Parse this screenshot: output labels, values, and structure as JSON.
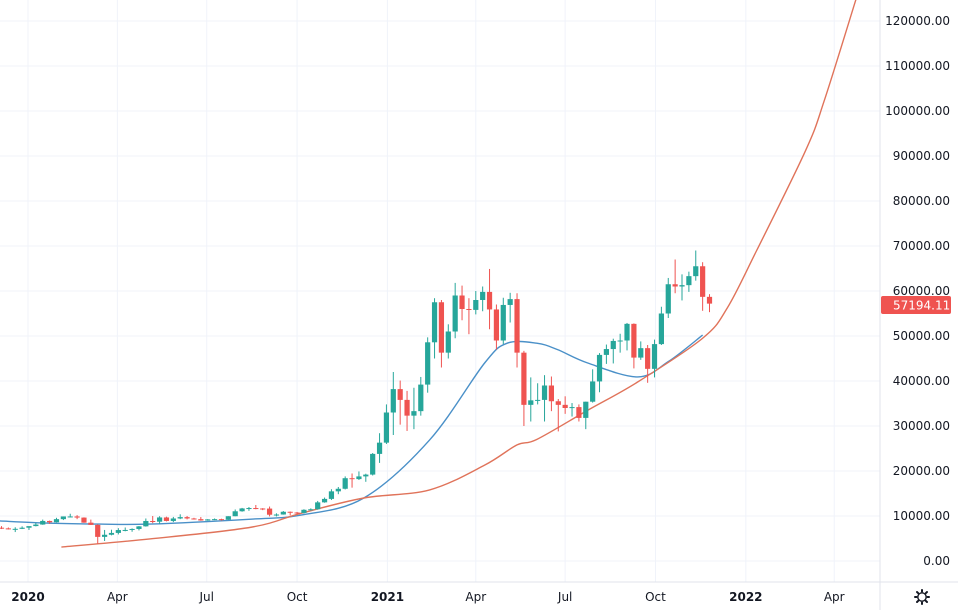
{
  "chart_data": {
    "type": "candlestick",
    "interval": "1W",
    "start": "2019-12-02",
    "ohlc_columns": [
      "open",
      "high",
      "low",
      "close"
    ],
    "candles": [
      [
        7400,
        7750,
        7100,
        7250
      ],
      [
        7250,
        7450,
        7000,
        7050
      ],
      [
        7050,
        7500,
        6430,
        7150
      ],
      [
        7150,
        7700,
        7100,
        7400
      ],
      [
        7400,
        7600,
        6900,
        7750
      ],
      [
        7760,
        8450,
        7700,
        8100
      ],
      [
        8100,
        9200,
        8050,
        8900
      ],
      [
        8900,
        8980,
        8250,
        8600
      ],
      [
        8600,
        9600,
        8550,
        9300
      ],
      [
        9300,
        9900,
        9100,
        9900
      ],
      [
        9900,
        10500,
        9700,
        9900
      ],
      [
        9900,
        10200,
        9300,
        9650
      ],
      [
        9650,
        9700,
        8500,
        8520
      ],
      [
        8520,
        9200,
        8000,
        8030
      ],
      [
        8030,
        8150,
        3850,
        5360
      ],
      [
        5360,
        6900,
        4450,
        5830
      ],
      [
        5830,
        6950,
        5700,
        6240
      ],
      [
        6240,
        7300,
        5900,
        6880
      ],
      [
        6880,
        7450,
        6600,
        6900
      ],
      [
        6900,
        7250,
        6500,
        7120
      ],
      [
        7120,
        7760,
        6800,
        7700
      ],
      [
        7700,
        9450,
        7640,
        8890
      ],
      [
        8890,
        10000,
        8400,
        8730
      ],
      [
        8730,
        9950,
        8250,
        9680
      ],
      [
        9680,
        9850,
        8800,
        8900
      ],
      [
        8900,
        9800,
        8650,
        9450
      ],
      [
        9450,
        10380,
        9300,
        9750
      ],
      [
        9750,
        10000,
        9250,
        9450
      ],
      [
        9450,
        9600,
        9200,
        9300
      ],
      [
        9300,
        9770,
        8950,
        9000
      ],
      [
        9000,
        9300,
        8950,
        9250
      ],
      [
        9250,
        9450,
        9100,
        9300
      ],
      [
        9300,
        9400,
        9000,
        9170
      ],
      [
        9170,
        9950,
        9150,
        9950
      ],
      [
        9950,
        11450,
        9950,
        11050
      ],
      [
        11050,
        11800,
        10950,
        11680
      ],
      [
        11680,
        12000,
        11150,
        11770
      ],
      [
        11770,
        12450,
        11500,
        11670
      ],
      [
        11670,
        11750,
        11300,
        11650
      ],
      [
        11650,
        12100,
        9900,
        10280
      ],
      [
        10280,
        10600,
        9900,
        10330
      ],
      [
        10330,
        11100,
        10300,
        10940
      ],
      [
        10940,
        11000,
        10150,
        10780
      ],
      [
        10780,
        10900,
        10400,
        10680
      ],
      [
        10680,
        11500,
        10550,
        11380
      ],
      [
        11380,
        11700,
        11200,
        11500
      ],
      [
        11500,
        13350,
        11400,
        13030
      ],
      [
        13030,
        14100,
        12950,
        13800
      ],
      [
        13800,
        15950,
        13550,
        15480
      ],
      [
        15480,
        16450,
        14850,
        16050
      ],
      [
        16050,
        18800,
        15900,
        18400
      ],
      [
        18400,
        19450,
        16300,
        18200
      ],
      [
        18200,
        19900,
        18000,
        18800
      ],
      [
        18800,
        19400,
        17600,
        19200
      ],
      [
        19200,
        24000,
        19000,
        23800
      ],
      [
        23800,
        28400,
        21800,
        26300
      ],
      [
        26300,
        34800,
        26000,
        33000
      ],
      [
        33000,
        42000,
        28000,
        38200
      ],
      [
        38200,
        40100,
        30300,
        35800
      ],
      [
        35800,
        37800,
        28900,
        32300
      ],
      [
        32300,
        38500,
        29300,
        33300
      ],
      [
        33300,
        40900,
        32300,
        39200
      ],
      [
        39200,
        49700,
        37400,
        48600
      ],
      [
        48600,
        58400,
        45000,
        57500
      ],
      [
        57500,
        58000,
        43000,
        46300
      ],
      [
        46300,
        52600,
        45000,
        51000
      ],
      [
        51000,
        61800,
        49500,
        59000
      ],
      [
        59000,
        61200,
        53500,
        56000
      ],
      [
        56000,
        58400,
        50400,
        55800
      ],
      [
        55800,
        60000,
        54800,
        58000
      ],
      [
        58000,
        61000,
        55500,
        59800
      ],
      [
        59800,
        64900,
        51500,
        55900
      ],
      [
        55900,
        57000,
        47000,
        49000
      ],
      [
        49000,
        58500,
        48200,
        56900
      ],
      [
        56900,
        59600,
        53000,
        58200
      ],
      [
        58200,
        59500,
        43000,
        46300
      ],
      [
        46300,
        46700,
        30000,
        34700
      ],
      [
        34700,
        40800,
        31000,
        35700
      ],
      [
        35700,
        39500,
        34800,
        35800
      ],
      [
        35800,
        41300,
        31000,
        39000
      ],
      [
        39000,
        41000,
        33300,
        35500
      ],
      [
        35500,
        36000,
        28800,
        34700
      ],
      [
        34700,
        36600,
        32700,
        34000
      ],
      [
        34000,
        35100,
        32100,
        34200
      ],
      [
        34200,
        34800,
        31000,
        31800
      ],
      [
        31800,
        35400,
        29300,
        35400
      ],
      [
        35400,
        42600,
        35200,
        39900
      ],
      [
        39900,
        46200,
        37500,
        45800
      ],
      [
        45800,
        48100,
        43800,
        47100
      ],
      [
        47100,
        49400,
        43900,
        48900
      ],
      [
        48900,
        50500,
        46300,
        49000
      ],
      [
        49000,
        52900,
        46800,
        52700
      ],
      [
        52700,
        52800,
        42800,
        45200
      ],
      [
        45200,
        48800,
        44700,
        47300
      ],
      [
        47300,
        48000,
        39600,
        42700
      ],
      [
        42700,
        49200,
        40800,
        48200
      ],
      [
        48200,
        56500,
        48000,
        55000
      ],
      [
        55000,
        62900,
        54000,
        61500
      ],
      [
        61500,
        67000,
        59500,
        61000
      ],
      [
        61000,
        63700,
        57900,
        61300
      ],
      [
        61300,
        64300,
        59800,
        63300
      ],
      [
        63300,
        69000,
        62300,
        65500
      ],
      [
        65500,
        66400,
        55600,
        58700
      ],
      [
        58700,
        59300,
        55300,
        57194.11
      ]
    ],
    "series": [
      {
        "kind": "moving-average",
        "color": "#4a90c8",
        "points": [
          [
            "2019-12-03",
            8900
          ],
          [
            "2020-01-23",
            8400
          ],
          [
            "2020-03-14",
            8200
          ],
          [
            "2020-05-04",
            8200
          ],
          [
            "2020-08-15",
            9300
          ],
          [
            "2020-10-05",
            10200
          ],
          [
            "2020-12-08",
            14000
          ],
          [
            "2021-02-13",
            26900
          ],
          [
            "2021-04-10",
            44000
          ],
          [
            "2021-05-03",
            48400
          ],
          [
            "2021-06-02",
            48400
          ],
          [
            "2021-06-23",
            47000
          ],
          [
            "2021-07-24",
            44000
          ],
          [
            "2021-09-13",
            40900
          ],
          [
            "2021-10-14",
            44300
          ],
          [
            "2021-11-18",
            50200
          ]
        ]
      },
      {
        "kind": "curve",
        "color": "#e0735a",
        "points": [
          [
            "2020-02-04",
            3100
          ],
          [
            "2020-05-04",
            4900
          ],
          [
            "2020-08-15",
            7500
          ],
          [
            "2020-10-05",
            10600
          ],
          [
            "2020-12-08",
            14000
          ],
          [
            "2021-02-13",
            15800
          ],
          [
            "2021-04-10",
            21300
          ],
          [
            "2021-05-13",
            25800
          ],
          [
            "2021-06-02",
            27000
          ],
          [
            "2021-07-24",
            33500
          ],
          [
            "2021-09-13",
            39800
          ],
          [
            "2021-11-18",
            49500
          ],
          [
            "2021-12-13",
            56200
          ],
          [
            "2022-01-12",
            69000
          ],
          [
            "2022-03-03",
            91300
          ],
          [
            "2022-03-22",
            102400
          ],
          [
            "2022-04-23",
            124700
          ]
        ]
      }
    ],
    "y_ticks": [
      "0.00",
      "10000.00",
      "20000.00",
      "30000.00",
      "40000.00",
      "50000.00",
      "60000.00",
      "70000.00",
      "80000.00",
      "90000.00",
      "100000.00",
      "110000.00",
      "120000.00"
    ],
    "x_ticks": [
      {
        "label": "2020",
        "date": "2020-01-01",
        "year": true
      },
      {
        "label": "Apr",
        "date": "2020-04-01"
      },
      {
        "label": "Jul",
        "date": "2020-07-01"
      },
      {
        "label": "Oct",
        "date": "2020-10-01"
      },
      {
        "label": "2021",
        "date": "2021-01-01",
        "year": true
      },
      {
        "label": "Apr",
        "date": "2021-04-01"
      },
      {
        "label": "Jul",
        "date": "2021-07-01"
      },
      {
        "label": "Oct",
        "date": "2021-10-01"
      },
      {
        "label": "2022",
        "date": "2022-01-01",
        "year": true
      },
      {
        "label": "Apr",
        "date": "2022-04-01"
      }
    ],
    "ylim": [
      0,
      120000
    ],
    "grid": true,
    "last_price_label": "57194.11",
    "colors": {
      "up": "#26a69a",
      "down": "#ef5350",
      "grid": "#f0f3fa",
      "price_label": "#ef5350"
    }
  },
  "toolbar": {
    "settings_icon": "gear-icon"
  }
}
